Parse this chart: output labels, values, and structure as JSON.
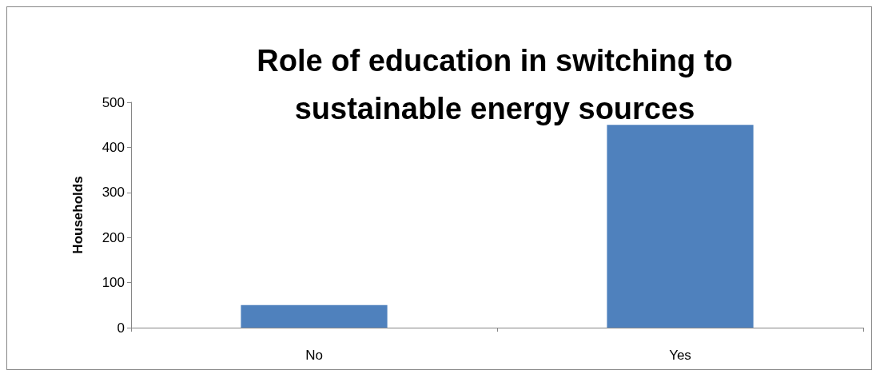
{
  "chart_data": {
    "type": "bar",
    "title": "Role of education in switching to\nsustainable energy sources",
    "ylabel": "Households",
    "categories": [
      "No",
      "Yes"
    ],
    "values": [
      50,
      450
    ],
    "color": "#4f81bd",
    "ylim": [
      0,
      500
    ],
    "yticks": [
      0,
      100,
      200,
      300,
      400,
      500
    ],
    "grid": false
  }
}
